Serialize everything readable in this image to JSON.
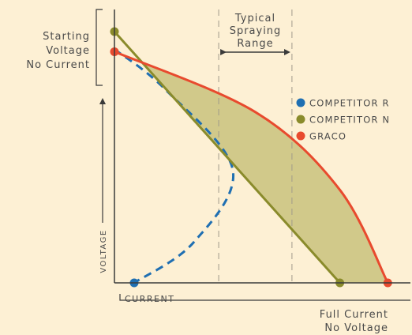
{
  "colors": {
    "background": "#fdf0d4",
    "graco": "#e84a2e",
    "competitor_n": "#8a8b2b",
    "competitor_r": "#1f6fb2",
    "fill": "#d1c98a",
    "axis": "#3a3a3a",
    "text": "#4a4a4a"
  },
  "chart_data": {
    "type": "line",
    "title": "",
    "xlabel": "CURRENT",
    "ylabel": "VOLTAGE",
    "xlim": [
      0,
      1
    ],
    "ylim": [
      0,
      1
    ],
    "grid": false,
    "annotations": {
      "start_label": [
        "Starting",
        "Voltage",
        "No Current"
      ],
      "end_label": [
        "Full Current",
        "No Voltage"
      ],
      "range_label": [
        "Typical",
        "Spraying",
        "Range"
      ],
      "typical_range": [
        0.37,
        0.63
      ]
    },
    "legend": {
      "placement": "right",
      "entries": [
        "COMPETITOR R",
        "COMPETITOR N",
        "GRACO"
      ]
    },
    "series": [
      {
        "name": "COMPETITOR R",
        "style": "dashed",
        "points": [
          [
            0,
            0.93
          ],
          [
            0.18,
            0.77
          ],
          [
            0.42,
            0.45
          ],
          [
            0.28,
            0.16
          ],
          [
            0.07,
            0
          ]
        ]
      },
      {
        "name": "COMPETITOR N",
        "style": "solid",
        "points": [
          [
            0,
            1.0
          ],
          [
            0.8,
            0
          ]
        ]
      },
      {
        "name": "GRACO",
        "style": "solid",
        "points": [
          [
            0,
            0.92
          ],
          [
            0.5,
            0.68
          ],
          [
            0.8,
            0.37
          ],
          [
            0.97,
            0
          ]
        ]
      }
    ]
  }
}
